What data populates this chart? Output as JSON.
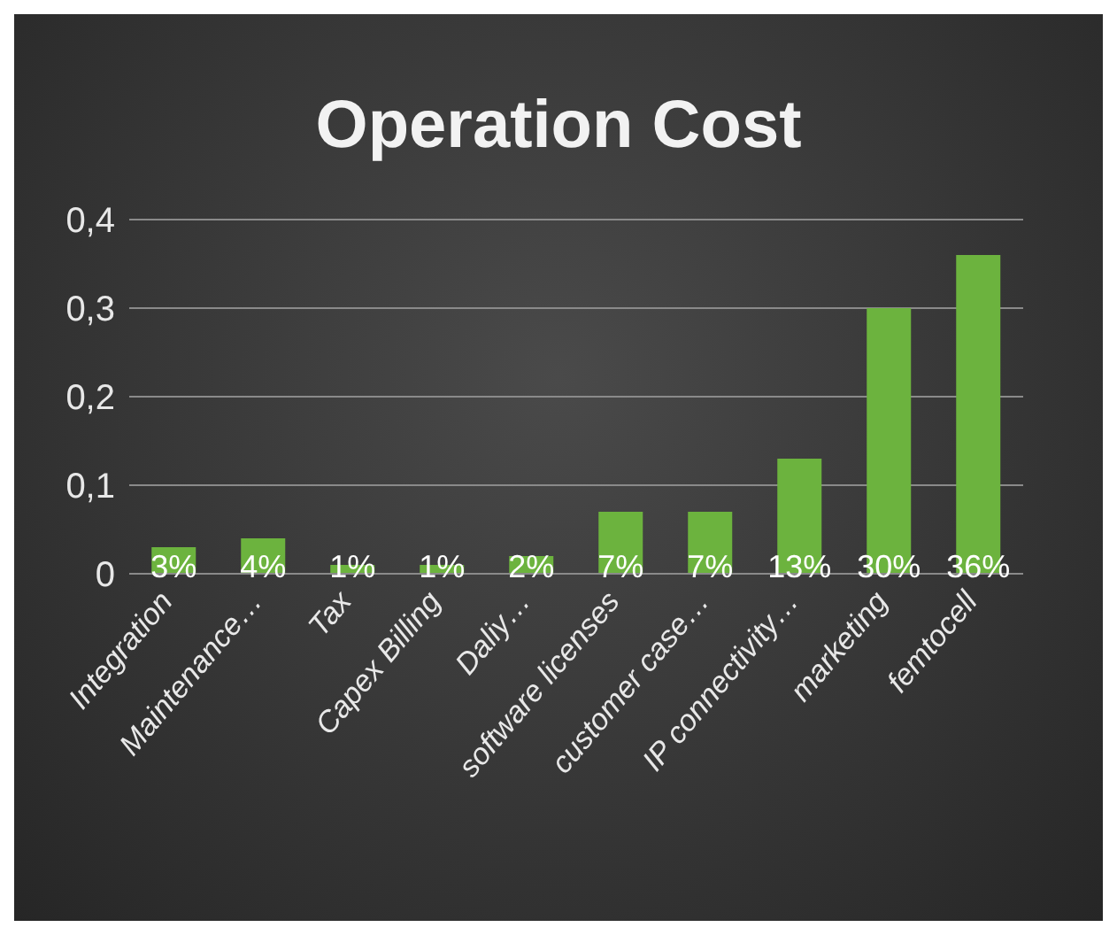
{
  "chart_data": {
    "type": "bar",
    "title": "Operation Cost",
    "categories": [
      "Integration",
      "Maintenance…",
      "Tax",
      "Capex Billing",
      "Daliy…",
      "software licenses",
      "customer case…",
      "IP connectivity…",
      "marketing",
      "femtocell"
    ],
    "values": [
      0.03,
      0.04,
      0.01,
      0.01,
      0.02,
      0.07,
      0.07,
      0.13,
      0.3,
      0.36
    ],
    "value_labels": [
      "3%",
      "4%",
      "1%",
      "1%",
      "2%",
      "7%",
      "7%",
      "13%",
      "30%",
      "36%"
    ],
    "color": "#6cb33e",
    "ylim": [
      0,
      0.4
    ],
    "yticks": [
      0,
      {
        "value": 0.1,
        "label": "0,1"
      },
      {
        "value": 0.2,
        "label": "0,2"
      },
      {
        "value": 0.3,
        "label": "0,3"
      },
      {
        "value": 0.4,
        "label": "0,4"
      }
    ],
    "grid": "y"
  }
}
